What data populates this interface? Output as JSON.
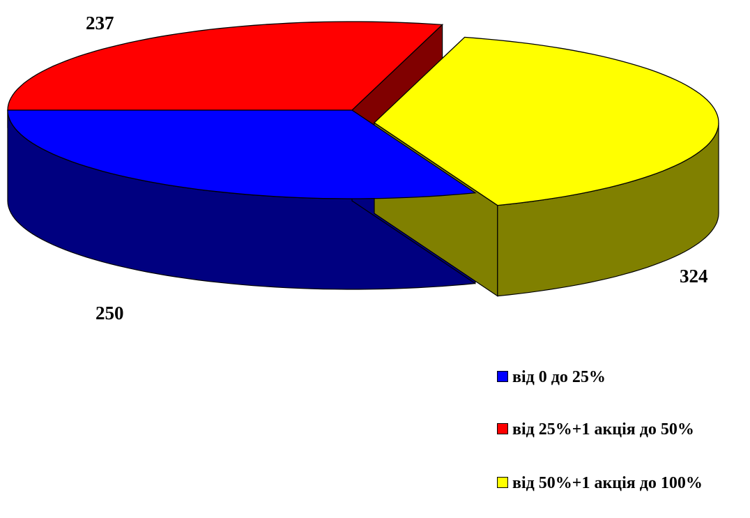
{
  "chart_data": {
    "type": "pie",
    "style": "3d-exploded",
    "categories": [
      "від 0 до 25%",
      "від 25%+1 акція до 50%",
      "від 50%+1 акція до 100%"
    ],
    "values": [
      250,
      237,
      324
    ],
    "colors": [
      "#0000FF",
      "#FF0000",
      "#FFFF00"
    ],
    "side_colors": [
      "#000080",
      "#800000",
      "#808000"
    ],
    "data_labels": [
      "250",
      "237",
      "324"
    ],
    "legend": {
      "position": "bottom-right",
      "entries": [
        {
          "label": "від 0 до 25%",
          "color": "#0000FF"
        },
        {
          "label": "від 25%+1 акція до 50%",
          "color": "#FF0000"
        },
        {
          "label": "від 50%+1 акція до 100%",
          "color": "#FFFF00"
        }
      ]
    }
  }
}
